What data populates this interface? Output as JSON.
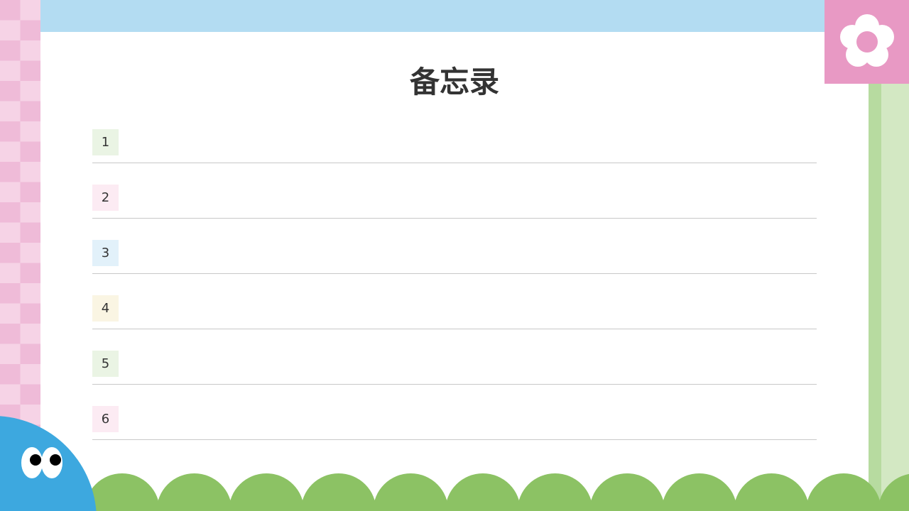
{
  "title": "备忘录",
  "items": [
    {
      "number": "1",
      "color": "#eaf4e4"
    },
    {
      "number": "2",
      "color": "#fcebf3"
    },
    {
      "number": "3",
      "color": "#e2f1fa"
    },
    {
      "number": "4",
      "color": "#faf5e3"
    },
    {
      "number": "5",
      "color": "#eaf4e4"
    },
    {
      "number": "6",
      "color": "#fcebf3"
    }
  ],
  "colors": {
    "pink": "#e899c4",
    "sky": "#b3dcf2",
    "green": "#8cc264",
    "blob": "#3da8df"
  }
}
